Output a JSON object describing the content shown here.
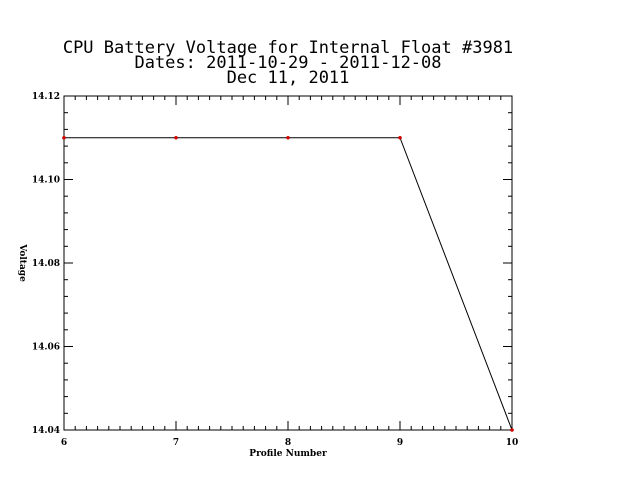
{
  "chart_data": {
    "type": "line",
    "title_lines": [
      "CPU Battery Voltage for Internal Float #3981",
      "Dates:  2011-10-29 -  2011-12-08",
      "Dec 11, 2011"
    ],
    "xlabel": "Profile Number",
    "ylabel": "Voltage",
    "xlim": [
      6,
      10
    ],
    "ylim": [
      14.04,
      14.12
    ],
    "x_ticks": [
      6,
      7,
      8,
      9,
      10
    ],
    "x_tick_labels": [
      "6",
      "7",
      "8",
      "9",
      "10"
    ],
    "y_ticks": [
      14.04,
      14.06,
      14.08,
      14.1,
      14.12
    ],
    "y_tick_labels": [
      "14.04",
      "14.06",
      "14.08",
      "14.10",
      "14.12"
    ],
    "x_minor_per_major": 10,
    "y_minor_per_major": 5,
    "grid": false,
    "series": [
      {
        "x": [
          6,
          7,
          8,
          9,
          10
        ],
        "y": [
          14.11,
          14.11,
          14.11,
          14.11,
          14.04
        ],
        "line_color": "#000000",
        "marker_color": "#cc0000"
      }
    ]
  }
}
